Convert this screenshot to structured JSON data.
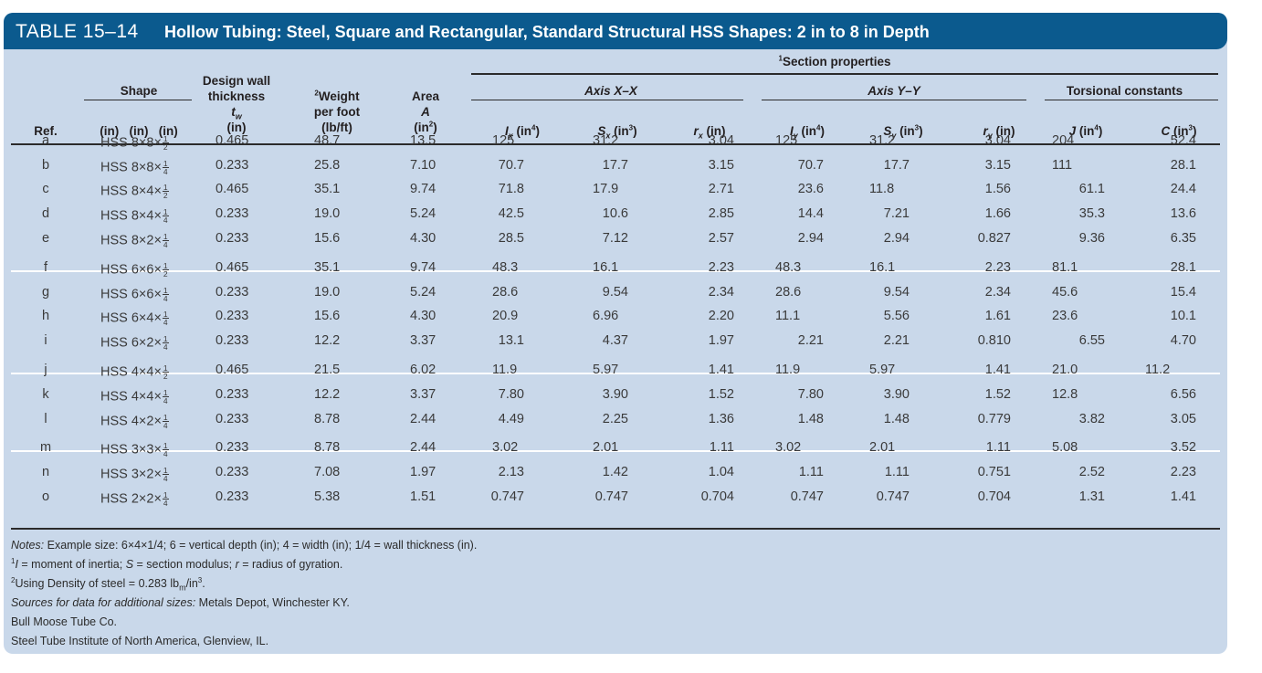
{
  "title": {
    "number": "TABLE 15–14",
    "text": "Hollow Tubing: Steel, Square and Rectangular, Standard Structural HSS Shapes: 2 in to 8 in Depth"
  },
  "headers": {
    "section_properties_sup": "1",
    "section_properties": "Section properties",
    "ref": "Ref.",
    "shape": "Shape",
    "shape_units": "(in)   (in)   (in)",
    "design_wall": "Design wall",
    "thickness": "thickness",
    "tw": "t",
    "tw_sub": "w",
    "tw_units": "(in)",
    "weight_sup": "2",
    "weight": "Weight",
    "per_foot": "per foot",
    "weight_units": "(lb/ft)",
    "area": "Area",
    "area_sym": "A",
    "area_units": "(in",
    "axis_xx": "Axis X–X",
    "axis_yy": "Axis Y–Y",
    "torsional": "Torsional constants",
    "ix": "I",
    "ix_sub": "x",
    "ix_units": " (in",
    "sx": "S",
    "sx_sub": "x",
    "sx_units": " (in",
    "rx": "r",
    "rx_sub": "x",
    "rx_units": " (in)",
    "iy": "I",
    "iy_sub": "y",
    "iy_units": " (in",
    "sy": "S",
    "sy_sub": "y",
    "sy_units": " (in",
    "ry": "r",
    "ry_sub": "y",
    "ry_units": " (in)",
    "j": "J",
    "j_units": " (in",
    "c": "C",
    "c_units": " (in",
    "pow4": "4",
    "pow3": "3",
    "pow2": "2"
  },
  "rows": [
    {
      "ref": "a",
      "shape": "HSS 8×8×",
      "fn": "1",
      "fd": "2",
      "tw": "0.465",
      "wt": "48.7",
      "area": "13.5",
      "ix": "125",
      "sx": "31.2",
      "rx": "3.04",
      "iy": "125",
      "sy": "31.2",
      "ry": "3.04",
      "j": "204",
      "c": "52.4"
    },
    {
      "ref": "b",
      "shape": "HSS 8×8×",
      "fn": "1",
      "fd": "4",
      "tw": "0.233",
      "wt": "25.8",
      "area": "7.10",
      "ix": "70.7",
      "sx": "17.7",
      "rx": "3.15",
      "iy": "70.7",
      "sy": "17.7",
      "ry": "3.15",
      "j": "111",
      "c": "28.1"
    },
    {
      "ref": "c",
      "shape": "HSS 8×4×",
      "fn": "1",
      "fd": "2",
      "tw": "0.465",
      "wt": "35.1",
      "area": "9.74",
      "ix": "71.8",
      "sx": "17.9",
      "rx": "2.71",
      "iy": "23.6",
      "sy": "11.8",
      "ry": "1.56",
      "j": "61.1",
      "c": "24.4"
    },
    {
      "ref": "d",
      "shape": "HSS 8×4×",
      "fn": "1",
      "fd": "4",
      "tw": "0.233",
      "wt": "19.0",
      "area": "5.24",
      "ix": "42.5",
      "sx": "10.6",
      "rx": "2.85",
      "iy": "14.4",
      "sy": "7.21",
      "ry": "1.66",
      "j": "35.3",
      "c": "13.6"
    },
    {
      "ref": "e",
      "shape": "HSS 8×2×",
      "fn": "1",
      "fd": "4",
      "tw": "0.233",
      "wt": "15.6",
      "area": "4.30",
      "ix": "28.5",
      "sx": "7.12",
      "rx": "2.57",
      "iy": "2.94",
      "sy": "2.94",
      "ry": "0.827",
      "j": "9.36",
      "c": "6.35"
    },
    {
      "ref": "f",
      "shape": "HSS 6×6×",
      "fn": "1",
      "fd": "2",
      "tw": "0.465",
      "wt": "35.1",
      "area": "9.74",
      "ix": "48.3",
      "sx": "16.1",
      "rx": "2.23",
      "iy": "48.3",
      "sy": "16.1",
      "ry": "2.23",
      "j": "81.1",
      "c": "28.1"
    },
    {
      "ref": "g",
      "shape": "HSS 6×6×",
      "fn": "1",
      "fd": "4",
      "tw": "0.233",
      "wt": "19.0",
      "area": "5.24",
      "ix": "28.6",
      "sx": "9.54",
      "rx": "2.34",
      "iy": "28.6",
      "sy": "9.54",
      "ry": "2.34",
      "j": "45.6",
      "c": "15.4"
    },
    {
      "ref": "h",
      "shape": "HSS 6×4×",
      "fn": "1",
      "fd": "4",
      "tw": "0.233",
      "wt": "15.6",
      "area": "4.30",
      "ix": "20.9",
      "sx": "6.96",
      "rx": "2.20",
      "iy": "11.1",
      "sy": "5.56",
      "ry": "1.61",
      "j": "23.6",
      "c": "10.1"
    },
    {
      "ref": "i",
      "shape": "HSS 6×2×",
      "fn": "1",
      "fd": "4",
      "tw": "0.233",
      "wt": "12.2",
      "area": "3.37",
      "ix": "13.1",
      "sx": "4.37",
      "rx": "1.97",
      "iy": "2.21",
      "sy": "2.21",
      "ry": "0.810",
      "j": "6.55",
      "c": "4.70"
    },
    {
      "ref": "j",
      "shape": "HSS 4×4×",
      "fn": "1",
      "fd": "2",
      "tw": "0.465",
      "wt": "21.5",
      "area": "6.02",
      "ix": "11.9",
      "sx": "5.97",
      "rx": "1.41",
      "iy": "11.9",
      "sy": "5.97",
      "ry": "1.41",
      "j": "21.0",
      "c": "11.2"
    },
    {
      "ref": "k",
      "shape": "HSS 4×4×",
      "fn": "1",
      "fd": "4",
      "tw": "0.233",
      "wt": "12.2",
      "area": "3.37",
      "ix": "7.80",
      "sx": "3.90",
      "rx": "1.52",
      "iy": "7.80",
      "sy": "3.90",
      "ry": "1.52",
      "j": "12.8",
      "c": "6.56"
    },
    {
      "ref": "l",
      "shape": "HSS 4×2×",
      "fn": "1",
      "fd": "4",
      "tw": "0.233",
      "wt": "8.78",
      "area": "2.44",
      "ix": "4.49",
      "sx": "2.25",
      "rx": "1.36",
      "iy": "1.48",
      "sy": "1.48",
      "ry": "0.779",
      "j": "3.82",
      "c": "3.05"
    },
    {
      "ref": "m",
      "shape": "HSS 3×3×",
      "fn": "1",
      "fd": "4",
      "tw": "0.233",
      "wt": "8.78",
      "area": "2.44",
      "ix": "3.02",
      "sx": "2.01",
      "rx": "1.11",
      "iy": "3.02",
      "sy": "2.01",
      "ry": "1.11",
      "j": "5.08",
      "c": "3.52"
    },
    {
      "ref": "n",
      "shape": "HSS 3×2×",
      "fn": "1",
      "fd": "4",
      "tw": "0.233",
      "wt": "7.08",
      "area": "1.97",
      "ix": "2.13",
      "sx": "1.42",
      "rx": "1.04",
      "iy": "1.11",
      "sy": "1.11",
      "ry": "0.751",
      "j": "2.52",
      "c": "2.23"
    },
    {
      "ref": "o",
      "shape": "HSS 2×2×",
      "fn": "1",
      "fd": "4",
      "tw": "0.233",
      "wt": "5.38",
      "area": "1.51",
      "ix": "0.747",
      "sx": "0.747",
      "rx": "0.704",
      "iy": "0.747",
      "sy": "0.747",
      "ry": "0.704",
      "j": "1.31",
      "c": "1.41"
    }
  ],
  "notes": {
    "n1_label": "Notes:",
    "n1_text": " Example size: 6×4×1/4; 6 = vertical depth (in); 4 = width (in); 1/4 = wall thickness (in).",
    "n2_sup": "1",
    "n2_i": "I",
    "n2_a": " = moment of inertia; ",
    "n2_s": "S",
    "n2_b": " = section modulus; ",
    "n2_r": "r",
    "n2_c": " = radius of gyration.",
    "n3_sup": "2",
    "n3_a": "Using Density of steel = 0.283 lb",
    "n3_sub": "m",
    "n3_b": "/in",
    "n3_sup2": "3",
    "n3_c": ".",
    "n4_label": "Sources for data for additional sizes:",
    "n4_text": " Metals Depot, Winchester KY.",
    "n5": "Bull Moose Tube Co.",
    "n6": "Steel Tube Institute of North America, Glenview, IL."
  },
  "colors": {
    "title_bar": "#0b5a8e",
    "panel": "#c9d8ea",
    "separator": "#ffffff"
  }
}
